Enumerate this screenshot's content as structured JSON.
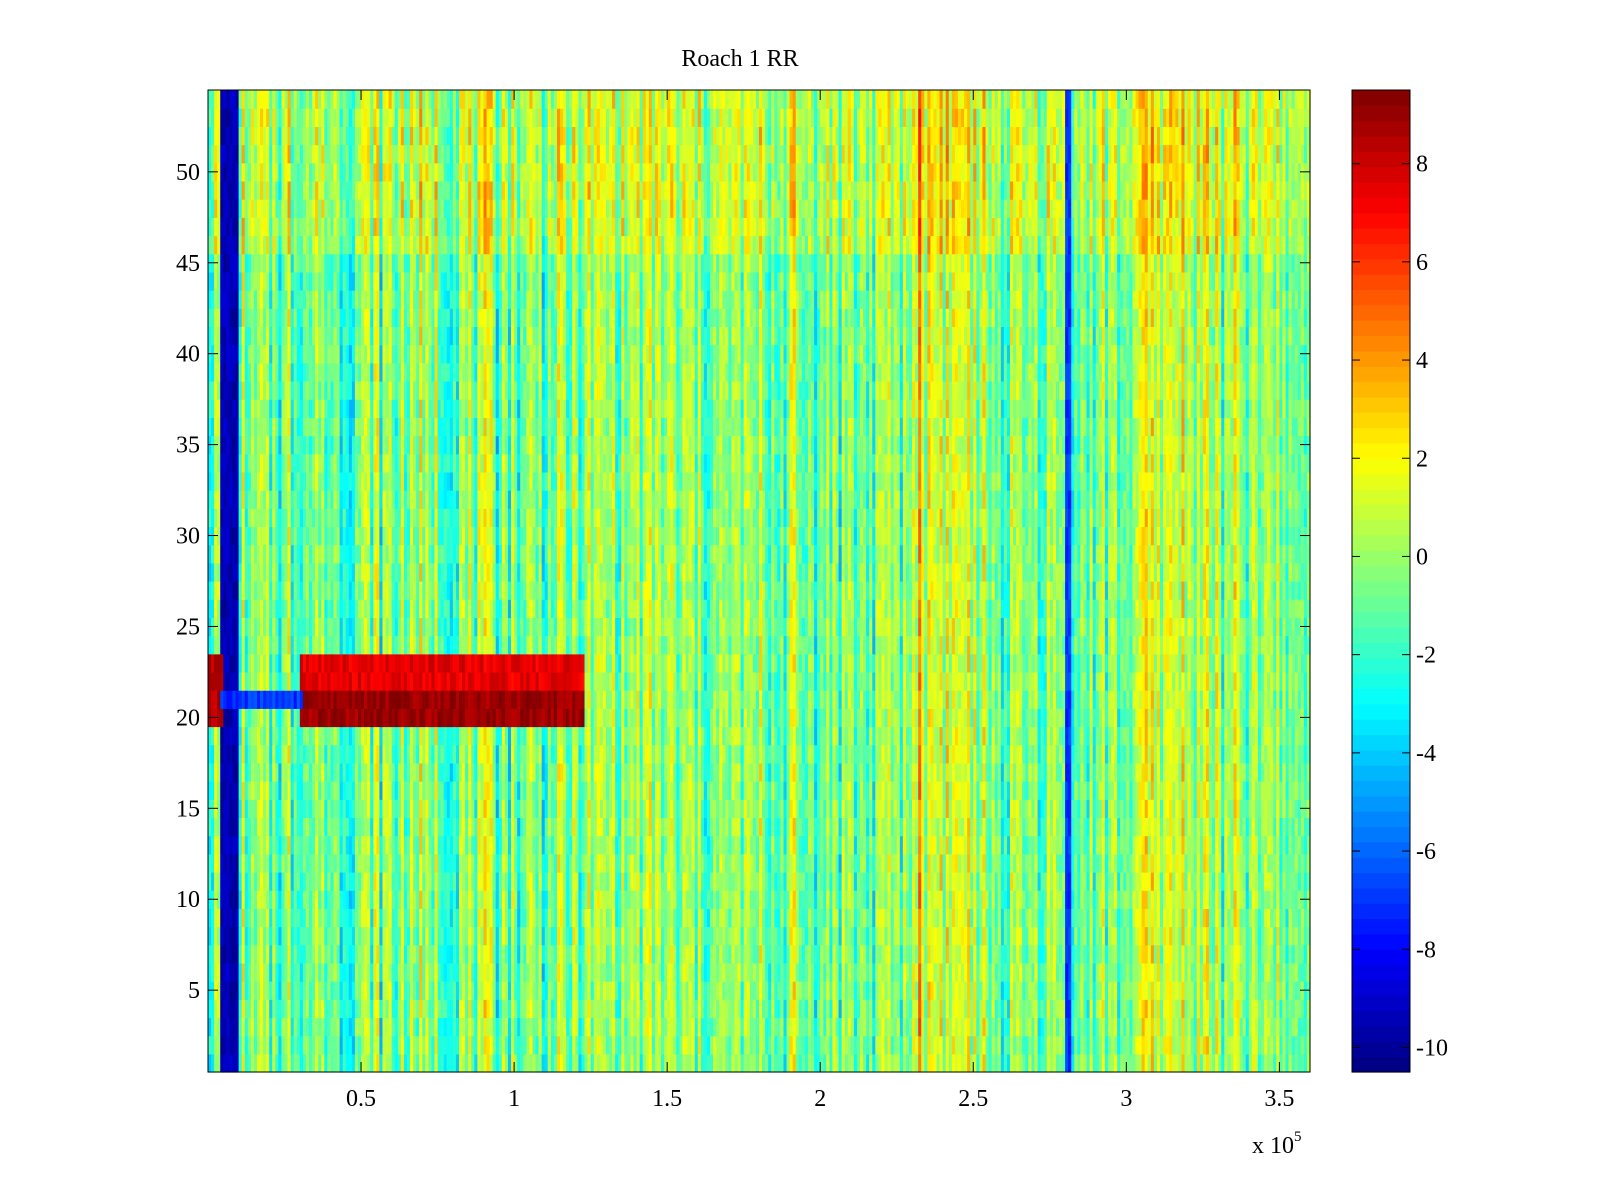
{
  "chart_data": {
    "type": "heatmap",
    "title": "Roach 1 RR",
    "xlabel": "",
    "ylabel": "",
    "x_multiplier_label": "x 10",
    "x_multiplier_exponent": "5",
    "xlim": [
      0,
      360000
    ],
    "ylim": [
      0.5,
      54.5
    ],
    "x_tick_values": [
      50000,
      100000,
      150000,
      200000,
      250000,
      300000,
      350000
    ],
    "x_tick_labels": [
      "0.5",
      "1",
      "1.5",
      "2",
      "2.5",
      "3",
      "3.5"
    ],
    "y_tick_values": [
      5,
      10,
      15,
      20,
      25,
      30,
      35,
      40,
      45,
      50
    ],
    "y_tick_labels": [
      "5",
      "10",
      "15",
      "20",
      "25",
      "30",
      "35",
      "40",
      "45",
      "50"
    ],
    "colormap": "jet",
    "clim": [
      -10.5,
      9.5
    ],
    "colorbar_tick_values": [
      -10,
      -8,
      -6,
      -4,
      -2,
      0,
      2,
      4,
      6,
      8
    ],
    "colorbar_tick_labels": [
      "-10",
      "-8",
      "-6",
      "-4",
      "-2",
      "0",
      "2",
      "4",
      "6",
      "8"
    ],
    "rows": 54,
    "features": [
      {
        "description": "strong negative band",
        "x_range": [
          4000,
          9000
        ],
        "y_range": [
          0.5,
          54.5
        ],
        "value": -9.5
      },
      {
        "description": "high band upper",
        "x_range": [
          30000,
          122000
        ],
        "y_range": [
          21.5,
          23.5
        ],
        "value": 7.5
      },
      {
        "description": "high band lower",
        "x_range": [
          30000,
          122000
        ],
        "y_range": [
          19.5,
          21.5
        ],
        "value": 9.0
      },
      {
        "description": "left segment high",
        "x_range": [
          0,
          4000
        ],
        "y_range": [
          19.5,
          23.5
        ],
        "value": 8.5
      },
      {
        "description": "left segment low",
        "x_range": [
          4000,
          30000
        ],
        "y_range": [
          20.5,
          21.5
        ],
        "value": -7.0
      },
      {
        "description": "vertical dark line",
        "x_range": [
          280000,
          281000
        ],
        "y_range": [
          0.5,
          54.5
        ],
        "value": -7.0
      }
    ]
  }
}
